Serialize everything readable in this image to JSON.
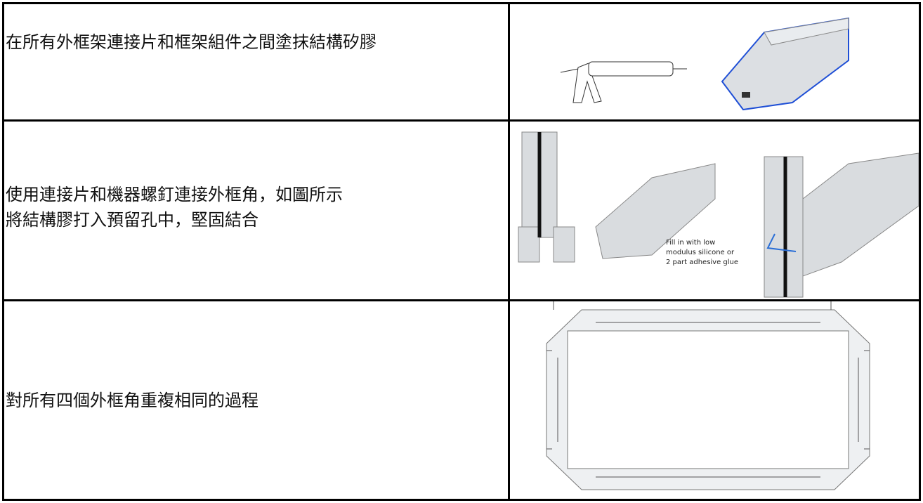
{
  "table": {
    "rows": [
      {
        "lines": [
          "在所有外框架連接片和框架組件之間塗抹結構矽膠"
        ]
      },
      {
        "lines": [
          "使用連接片和機器螺釘連接外框角，如圖所示",
          "將結構膠打入預留孔中，堅固結合"
        ],
        "image_text": [
          "Fill in with low",
          "modulus silicone or",
          "2 part adhesive glue"
        ]
      },
      {
        "lines": [
          "對所有四個外框角重複相同的過程"
        ]
      }
    ]
  }
}
